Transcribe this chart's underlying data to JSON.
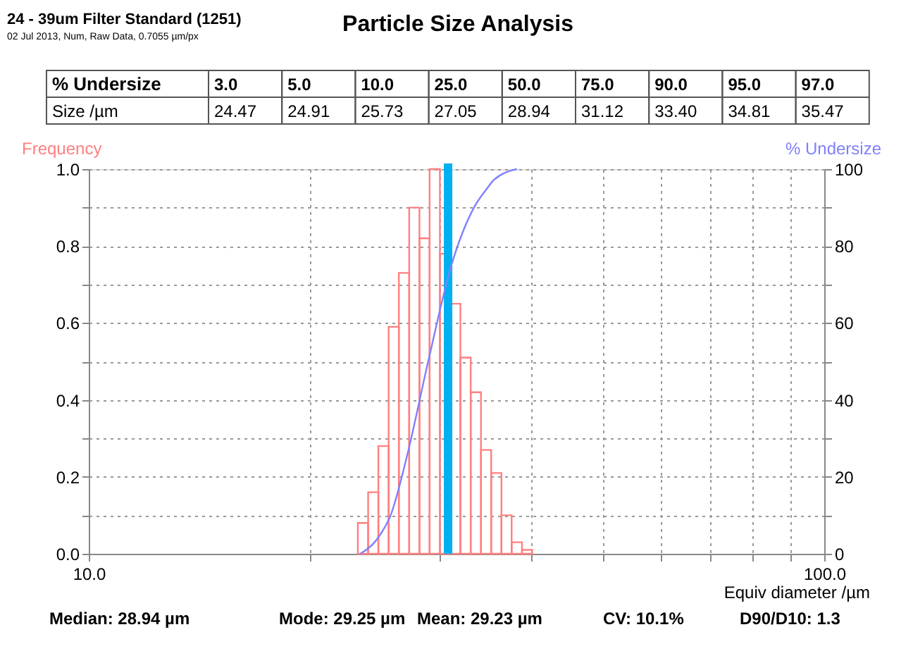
{
  "chart_data": {
    "type": "histogram",
    "title": "Particle Size Analysis",
    "bins": [
      23.22,
      23.98,
      24.76,
      25.57,
      26.4,
      27.27,
      28.16,
      29.07,
      30.02,
      31.0,
      32.01,
      33.06,
      34.14,
      35.25,
      36.4,
      37.58,
      38.82,
      40.08
    ],
    "values": [
      0.08,
      0.16,
      0.28,
      0.59,
      0.73,
      0.9,
      0.82,
      1.0,
      0.78,
      0.65,
      0.51,
      0.42,
      0.27,
      0.21,
      0.1,
      0.03,
      0.01
    ],
    "color": "#ff8080",
    "series": [
      {
        "type": "line",
        "axis": "y2",
        "color": "#8080ff",
        "x": [
          23.4,
          24.47,
          24.91,
          25.73,
          27.05,
          28.94,
          31.12,
          33.4,
          34.81,
          35.47,
          38.2
        ],
        "values": [
          0,
          3,
          5,
          10,
          25,
          50,
          75,
          90,
          95,
          97,
          100
        ]
      }
    ],
    "ylabel": "Frequency",
    "y2label": "% Undersize",
    "xlabel": "Equiv diameter /µm",
    "log": "x",
    "xlim": [
      10,
      100
    ],
    "xticks": [
      {
        "value": 10,
        "label": "10.0"
      },
      {
        "value": 20,
        "label": null
      },
      {
        "value": 30,
        "label": null
      },
      {
        "value": 40,
        "label": null
      },
      {
        "value": 50,
        "label": null
      },
      {
        "value": 60,
        "label": null
      },
      {
        "value": 70,
        "label": null
      },
      {
        "value": 80,
        "label": null
      },
      {
        "value": 90,
        "label": null
      },
      {
        "value": 100,
        "label": "100.0"
      }
    ],
    "ylim": [
      0,
      1
    ],
    "yticks": [
      {
        "value": 0,
        "label": "0.0"
      },
      {
        "value": 0.1,
        "label": null
      },
      {
        "value": 0.2,
        "label": "0.2"
      },
      {
        "value": 0.3,
        "label": null
      },
      {
        "value": 0.4,
        "label": "0.4"
      },
      {
        "value": 0.5,
        "label": null
      },
      {
        "value": 0.6,
        "label": "0.6"
      },
      {
        "value": 0.7,
        "label": null
      },
      {
        "value": 0.8,
        "label": "0.8"
      },
      {
        "value": 0.9,
        "label": null
      },
      {
        "value": 1.0,
        "label": "1.0"
      }
    ],
    "y2lim": [
      0,
      100
    ],
    "y2ticks": [
      0,
      {
        "value": 10,
        "label": null
      },
      20,
      {
        "value": 30,
        "label": null
      },
      40,
      {
        "value": 50,
        "label": null
      },
      60,
      {
        "value": 70,
        "label": null
      },
      80,
      {
        "value": 90,
        "label": null
      },
      100
    ],
    "grid": true,
    "legend": false,
    "ref_lines": [
      {
        "axis": "x",
        "value": 30.8,
        "color": "#00b0f0"
      }
    ],
    "annotations": [
      "24 - 39um Filter Standard (1251)",
      "02 Jul 2013, Num, Raw Data, 0.7055 µm/px",
      "% Undersize",
      "3.0",
      "5.0",
      "10.0",
      "25.0",
      "50.0",
      "75.0",
      "90.0",
      "95.0",
      "97.0",
      "Size /µm",
      "24.47",
      "24.91",
      "25.73",
      "27.05",
      "28.94",
      "31.12",
      "33.40",
      "34.81",
      "35.47",
      "Median: 28.94 µm",
      "Mode: 29.25 µm",
      "Mean: 29.23 µm",
      "CV: 10.1%",
      "D90/D10: 1.3"
    ]
  }
}
